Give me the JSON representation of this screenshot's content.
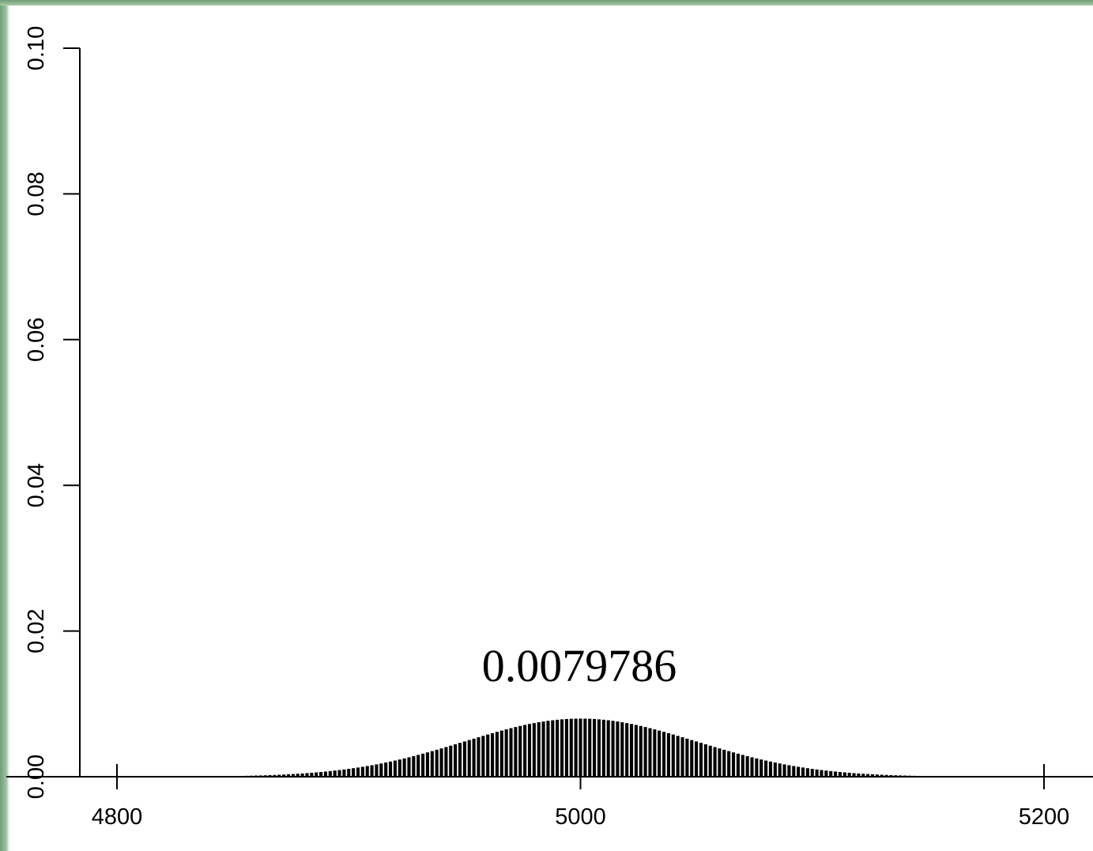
{
  "chart_data": {
    "type": "bar",
    "title": "",
    "xlabel": "",
    "ylabel": "",
    "xlim": [
      4800,
      5200
    ],
    "ylim": [
      0,
      0.1
    ],
    "x_ticks": [
      "4800",
      "5000",
      "5200"
    ],
    "y_ticks": [
      "0.00",
      "0.02",
      "0.04",
      "0.06",
      "0.08",
      "0.10"
    ],
    "annotation": "0.0079786",
    "peak_value": 0.0079786,
    "bar_color": "#000000",
    "bars_x_range": [
      4850,
      5150
    ],
    "bars_step": 2,
    "bars_mean": 5000,
    "bars_sd": 50,
    "grid": false
  }
}
